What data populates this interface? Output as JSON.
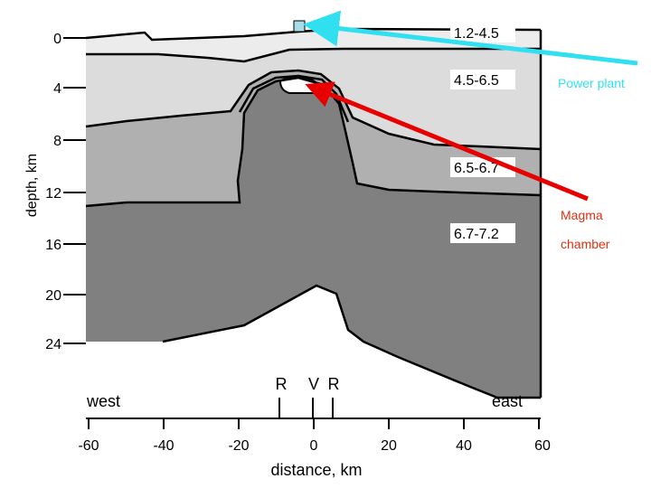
{
  "figure": {
    "y_axis": {
      "label": "depth, km",
      "ticks": [
        "0",
        "4",
        "8",
        "12",
        "16",
        "20",
        "24"
      ]
    },
    "x_axis": {
      "label": "distance, km",
      "ticks": [
        "-60",
        "-40",
        "-20",
        "0",
        "20",
        "40",
        "60"
      ]
    },
    "direction_labels": {
      "west": "west",
      "east": "east"
    },
    "markers": [
      "R",
      "V",
      "R"
    ],
    "layer_labels": [
      "1.2-4.5",
      "4.5-6.5",
      "6.5-6.7",
      "6.7-7.2"
    ],
    "annotations": {
      "power_plant": {
        "text": "Power plant",
        "color": "#30e0f0"
      },
      "magma_line1": {
        "text": "Magma",
        "color": "#e03010"
      },
      "magma_line2": {
        "text": "chamber",
        "color": "#e03010"
      }
    },
    "colors": {
      "layer1": "#ececec",
      "layer2": "#dcdcdc",
      "layer3": "#b0b0b0",
      "layer4": "#808080",
      "power_arrow": "#30e0f0",
      "magma_arrow": "#e80000",
      "plant_box": "#a8dce8"
    }
  }
}
